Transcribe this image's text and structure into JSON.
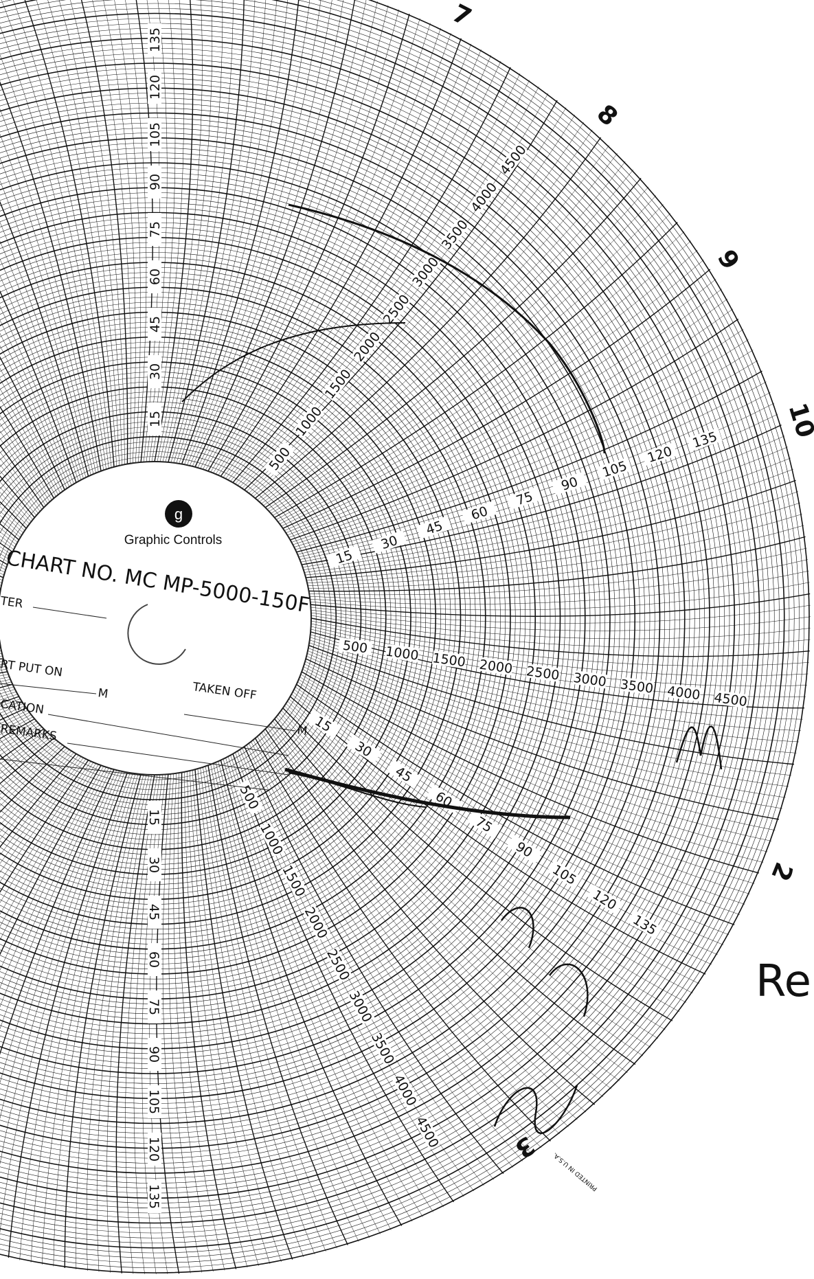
{
  "logo": {
    "brand": "Graphic Controls"
  },
  "form": {
    "chart_no": "CHART NO. MC MP-5000-150F",
    "fields": [
      "TER",
      "RT PUT ON",
      "M",
      "TAKEN OFF",
      "M",
      "CATION",
      "REMARKS"
    ]
  },
  "hour_labels": [
    "7",
    "8",
    "9",
    "10",
    "2",
    "3"
  ],
  "temperature_scale": [
    "15",
    "30",
    "45",
    "60",
    "75",
    "90",
    "105",
    "120",
    "135"
  ],
  "pressure_scale": [
    "500",
    "1000",
    "1500",
    "2000",
    "2500",
    "3000",
    "3500",
    "4000",
    "4500"
  ],
  "footer": {
    "printed": "PRINTED IN U.S.A.",
    "partial_text": "Re"
  }
}
